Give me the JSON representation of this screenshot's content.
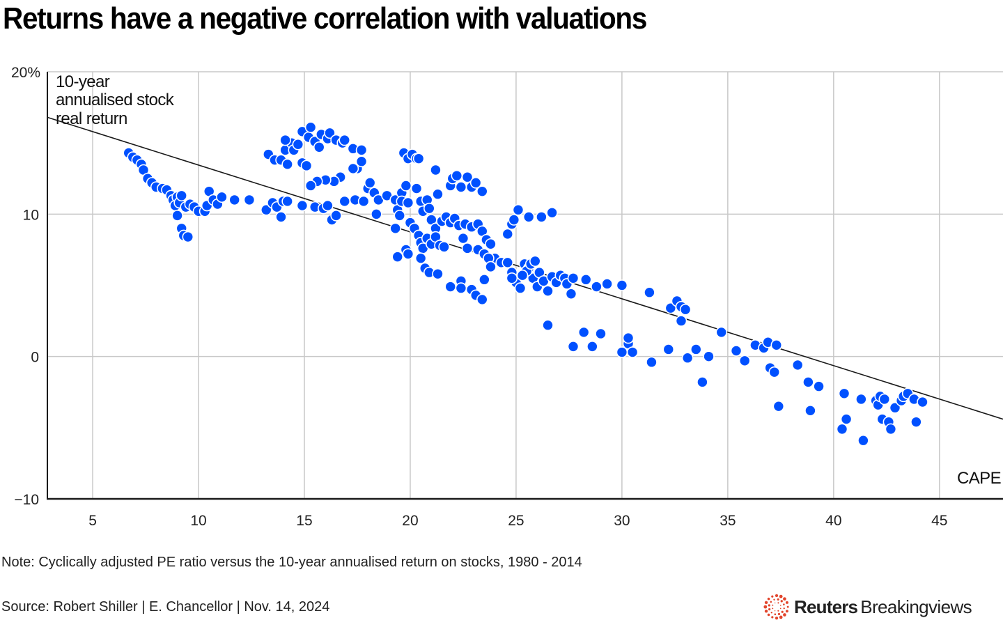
{
  "title": "Returns have a negative correlation with valuations",
  "note": "Note: Cyclically adjusted PE ratio versus the 10-year annualised return on stocks, 1980 - 2014",
  "source": "Source: Robert Shiller | E. Chancellor | Nov. 14, 2024",
  "brand": {
    "bold": "Reuters",
    "light": "Breakingviews",
    "logo_icon": "reuters-dot-ring-icon",
    "logo_color": "#e2452c"
  },
  "colors": {
    "points": "#0050ff",
    "point_stroke": "#ffffff",
    "trendline": "#1a1a1a",
    "grid": "#c8c8c8",
    "axis": "#1a1a1a"
  },
  "chart_data": {
    "type": "scatter",
    "title": "Returns have a negative correlation with valuations",
    "xlabel": "CAPE",
    "ylabel_lines": [
      "10-year",
      "annualised stock",
      "real return"
    ],
    "xlim": [
      2.86,
      48
    ],
    "ylim": [
      -10,
      20
    ],
    "xticks": [
      5,
      10,
      15,
      20,
      25,
      30,
      35,
      40,
      45
    ],
    "xtick_labels": [
      "5",
      "10",
      "15",
      "20",
      "25",
      "30",
      "35",
      "40",
      "45"
    ],
    "yticks": [
      20,
      10,
      0,
      -10
    ],
    "ytick_labels": [
      "20%",
      "10",
      "0",
      "−10"
    ],
    "grid": true,
    "legend": "none",
    "trendline": {
      "x": [
        2.86,
        48
      ],
      "y": [
        16.8,
        -4.4
      ]
    },
    "points": [
      [
        6.7,
        14.3
      ],
      [
        6.9,
        14.0
      ],
      [
        7.1,
        13.8
      ],
      [
        7.3,
        13.5
      ],
      [
        7.4,
        13.1
      ],
      [
        7.6,
        12.5
      ],
      [
        7.8,
        12.2
      ],
      [
        8.0,
        11.9
      ],
      [
        8.3,
        11.8
      ],
      [
        8.5,
        11.7
      ],
      [
        8.7,
        11.3
      ],
      [
        8.8,
        11.0
      ],
      [
        8.9,
        10.6
      ],
      [
        9.0,
        11.2
      ],
      [
        9.1,
        10.8
      ],
      [
        9.2,
        11.3
      ],
      [
        9.0,
        9.9
      ],
      [
        9.2,
        9.0
      ],
      [
        9.3,
        8.5
      ],
      [
        9.5,
        8.4
      ],
      [
        9.4,
        10.5
      ],
      [
        9.6,
        10.7
      ],
      [
        9.8,
        10.5
      ],
      [
        10.0,
        10.2
      ],
      [
        10.3,
        10.2
      ],
      [
        10.4,
        10.6
      ],
      [
        10.5,
        11.6
      ],
      [
        10.7,
        11.0
      ],
      [
        10.9,
        10.7
      ],
      [
        11.1,
        11.2
      ],
      [
        11.7,
        11.0
      ],
      [
        12.4,
        11.0
      ],
      [
        13.2,
        10.3
      ],
      [
        13.5,
        10.8
      ],
      [
        13.7,
        10.5
      ],
      [
        13.9,
        9.8
      ],
      [
        14.0,
        10.9
      ],
      [
        14.2,
        10.9
      ],
      [
        14.9,
        10.6
      ],
      [
        15.5,
        10.5
      ],
      [
        13.3,
        14.2
      ],
      [
        13.6,
        13.8
      ],
      [
        13.9,
        13.8
      ],
      [
        14.1,
        14.5
      ],
      [
        14.2,
        13.5
      ],
      [
        14.4,
        15.0
      ],
      [
        14.5,
        14.5
      ],
      [
        14.7,
        14.9
      ],
      [
        14.9,
        13.6
      ],
      [
        15.1,
        13.4
      ],
      [
        14.1,
        15.2
      ],
      [
        14.9,
        15.8
      ],
      [
        15.2,
        15.4
      ],
      [
        15.3,
        16.1
      ],
      [
        15.5,
        15.1
      ],
      [
        15.8,
        15.6
      ],
      [
        15.7,
        14.7
      ],
      [
        16.1,
        15.3
      ],
      [
        16.2,
        15.7
      ],
      [
        16.5,
        15.2
      ],
      [
        16.8,
        15.0
      ],
      [
        16.9,
        15.2
      ],
      [
        17.3,
        14.6
      ],
      [
        17.7,
        14.5
      ],
      [
        17.5,
        13.2
      ],
      [
        17.7,
        13.7
      ],
      [
        17.3,
        13.2
      ],
      [
        16.7,
        12.6
      ],
      [
        16.4,
        12.3
      ],
      [
        16.0,
        12.4
      ],
      [
        15.6,
        12.3
      ],
      [
        15.3,
        12.0
      ],
      [
        15.9,
        10.4
      ],
      [
        16.1,
        10.6
      ],
      [
        16.3,
        9.6
      ],
      [
        16.5,
        9.9
      ],
      [
        16.9,
        10.9
      ],
      [
        17.4,
        11.0
      ],
      [
        17.8,
        10.9
      ],
      [
        18.0,
        11.8
      ],
      [
        18.1,
        12.2
      ],
      [
        18.3,
        11.5
      ],
      [
        18.4,
        10.0
      ],
      [
        18.5,
        11.0
      ],
      [
        18.9,
        11.3
      ],
      [
        19.3,
        11.0
      ],
      [
        19.4,
        10.3
      ],
      [
        19.5,
        9.9
      ],
      [
        19.6,
        11.5
      ],
      [
        19.8,
        12.0
      ],
      [
        19.7,
        14.3
      ],
      [
        19.9,
        13.9
      ],
      [
        20.1,
        14.2
      ],
      [
        20.3,
        13.9
      ],
      [
        20.4,
        13.9
      ],
      [
        21.2,
        13.1
      ],
      [
        19.6,
        10.9
      ],
      [
        19.9,
        10.8
      ],
      [
        20.0,
        9.4
      ],
      [
        19.3,
        9.0
      ],
      [
        19.4,
        7.0
      ],
      [
        19.8,
        7.5
      ],
      [
        19.9,
        7.2
      ],
      [
        20.2,
        9.0
      ],
      [
        20.4,
        8.5
      ],
      [
        20.5,
        8.0
      ],
      [
        20.6,
        7.6
      ],
      [
        20.5,
        6.9
      ],
      [
        20.7,
        6.2
      ],
      [
        20.9,
        5.9
      ],
      [
        20.3,
        11.8
      ],
      [
        20.5,
        10.9
      ],
      [
        20.6,
        10.2
      ],
      [
        20.8,
        11.0
      ],
      [
        20.9,
        10.4
      ],
      [
        21.0,
        9.6
      ],
      [
        21.2,
        9.0
      ],
      [
        21.3,
        11.4
      ],
      [
        21.5,
        9.5
      ],
      [
        21.7,
        9.8
      ],
      [
        20.8,
        8.3
      ],
      [
        21.0,
        7.9
      ],
      [
        21.2,
        8.4
      ],
      [
        21.4,
        7.8
      ],
      [
        21.6,
        7.7
      ],
      [
        21.9,
        9.4
      ],
      [
        22.1,
        9.7
      ],
      [
        22.3,
        9.2
      ],
      [
        22.5,
        8.3
      ],
      [
        22.7,
        7.6
      ],
      [
        21.9,
        12.0
      ],
      [
        22.0,
        12.5
      ],
      [
        22.2,
        12.7
      ],
      [
        22.4,
        11.9
      ],
      [
        22.7,
        12.6
      ],
      [
        22.9,
        11.9
      ],
      [
        23.1,
        12.2
      ],
      [
        23.4,
        11.6
      ],
      [
        22.6,
        9.3
      ],
      [
        22.9,
        9.1
      ],
      [
        23.2,
        9.3
      ],
      [
        23.4,
        8.8
      ],
      [
        23.6,
        8.2
      ],
      [
        23.8,
        7.9
      ],
      [
        24.0,
        6.9
      ],
      [
        24.3,
        6.6
      ],
      [
        23.2,
        7.5
      ],
      [
        23.5,
        7.2
      ],
      [
        23.7,
        6.9
      ],
      [
        23.8,
        6.3
      ],
      [
        21.3,
        5.8
      ],
      [
        21.9,
        4.9
      ],
      [
        22.4,
        5.3
      ],
      [
        22.4,
        4.8
      ],
      [
        22.9,
        4.7
      ],
      [
        23.1,
        4.3
      ],
      [
        23.4,
        4.0
      ],
      [
        23.5,
        5.4
      ],
      [
        24.6,
        8.6
      ],
      [
        24.8,
        9.3
      ],
      [
        24.9,
        9.6
      ],
      [
        25.1,
        10.3
      ],
      [
        25.6,
        9.8
      ],
      [
        26.2,
        9.8
      ],
      [
        26.7,
        10.1
      ],
      [
        24.6,
        6.6
      ],
      [
        24.8,
        5.9
      ],
      [
        25.0,
        5.2
      ],
      [
        25.2,
        4.8
      ],
      [
        25.4,
        6.5
      ],
      [
        25.6,
        6.2
      ],
      [
        25.8,
        5.5
      ],
      [
        26.0,
        4.9
      ],
      [
        26.1,
        5.9
      ],
      [
        26.3,
        5.3
      ],
      [
        26.5,
        4.6
      ],
      [
        26.7,
        5.6
      ],
      [
        26.9,
        5.2
      ],
      [
        27.1,
        5.7
      ],
      [
        27.3,
        5.5
      ],
      [
        27.4,
        5.1
      ],
      [
        27.6,
        4.4
      ],
      [
        27.7,
        5.5
      ],
      [
        25.5,
        6.0
      ],
      [
        25.7,
        6.5
      ],
      [
        25.9,
        6.7
      ],
      [
        25.3,
        5.7
      ],
      [
        24.8,
        5.5
      ],
      [
        26.5,
        2.2
      ],
      [
        27.7,
        0.7
      ],
      [
        28.2,
        1.7
      ],
      [
        28.6,
        0.7
      ],
      [
        29.0,
        1.6
      ],
      [
        28.3,
        5.4
      ],
      [
        28.8,
        4.9
      ],
      [
        29.3,
        5.1
      ],
      [
        30.0,
        5.0
      ],
      [
        30.0,
        0.3
      ],
      [
        30.3,
        0.9
      ],
      [
        30.3,
        1.3
      ],
      [
        30.5,
        0.3
      ],
      [
        31.3,
        4.5
      ],
      [
        31.4,
        -0.4
      ],
      [
        32.2,
        0.5
      ],
      [
        32.3,
        3.4
      ],
      [
        32.6,
        3.9
      ],
      [
        32.8,
        3.5
      ],
      [
        32.8,
        2.5
      ],
      [
        33.0,
        3.3
      ],
      [
        33.1,
        -0.1
      ],
      [
        33.5,
        0.5
      ],
      [
        33.8,
        -1.8
      ],
      [
        34.1,
        0.0
      ],
      [
        34.7,
        1.7
      ],
      [
        35.4,
        0.4
      ],
      [
        35.8,
        -0.3
      ],
      [
        36.3,
        0.8
      ],
      [
        36.7,
        0.6
      ],
      [
        36.9,
        1.0
      ],
      [
        37.0,
        -0.8
      ],
      [
        37.2,
        -1.1
      ],
      [
        37.3,
        0.8
      ],
      [
        37.4,
        -3.5
      ],
      [
        38.3,
        -0.6
      ],
      [
        38.8,
        -1.8
      ],
      [
        38.9,
        -3.8
      ],
      [
        39.3,
        -2.1
      ],
      [
        40.4,
        -5.1
      ],
      [
        40.5,
        -2.6
      ],
      [
        40.6,
        -4.4
      ],
      [
        41.3,
        -3.0
      ],
      [
        41.4,
        -5.9
      ],
      [
        42.0,
        -3.1
      ],
      [
        42.1,
        -3.4
      ],
      [
        42.2,
        -2.8
      ],
      [
        42.3,
        -4.4
      ],
      [
        42.4,
        -3.0
      ],
      [
        42.6,
        -4.6
      ],
      [
        42.7,
        -5.1
      ],
      [
        42.9,
        -3.6
      ],
      [
        43.2,
        -3.1
      ],
      [
        43.3,
        -2.8
      ],
      [
        43.5,
        -2.6
      ],
      [
        43.8,
        -3.0
      ],
      [
        43.9,
        -4.6
      ],
      [
        44.2,
        -3.2
      ]
    ]
  }
}
